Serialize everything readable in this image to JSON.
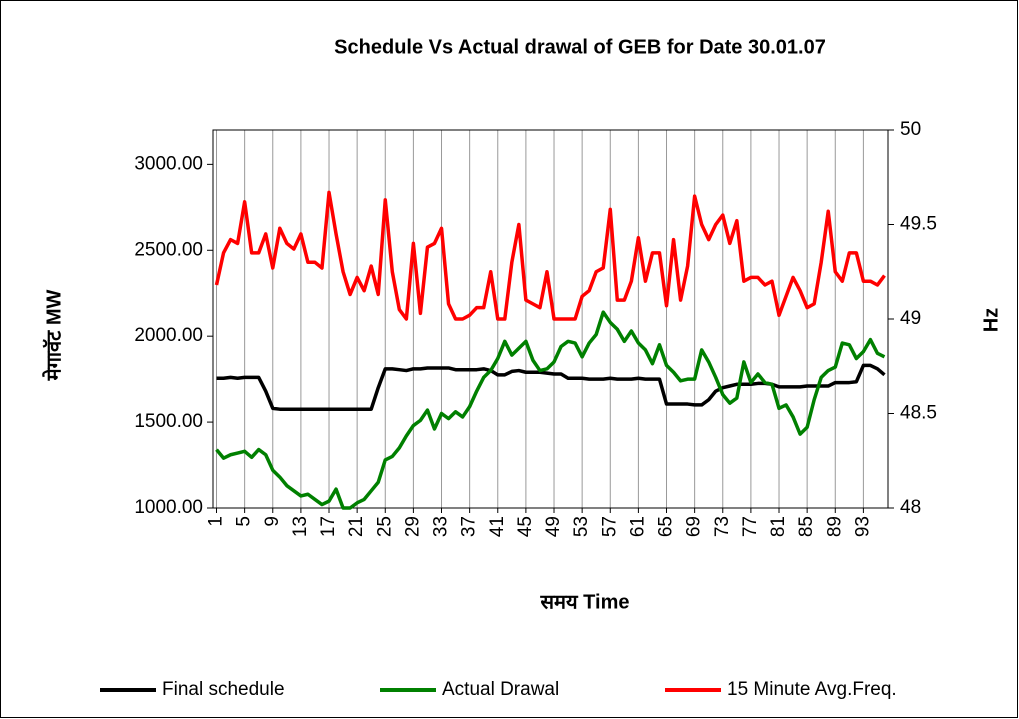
{
  "chart_data": {
    "type": "line",
    "title": "Schedule Vs Actual drawal of GEB for Date 30.01.07",
    "x_label": "समय Time",
    "y_label": "मेगावॅट   MW",
    "y2_label": "Hz",
    "categories": [
      1,
      null,
      null,
      null,
      5,
      null,
      null,
      null,
      9,
      null,
      null,
      null,
      13,
      null,
      null,
      null,
      17,
      null,
      null,
      null,
      21,
      null,
      null,
      null,
      25,
      null,
      null,
      null,
      29,
      null,
      null,
      null,
      33,
      null,
      null,
      null,
      37,
      null,
      null,
      null,
      41,
      null,
      null,
      null,
      45,
      null,
      null,
      null,
      49,
      null,
      null,
      null,
      53,
      null,
      null,
      null,
      57,
      null,
      null,
      null,
      61,
      null,
      null,
      null,
      65,
      null,
      null,
      null,
      69,
      null,
      null,
      null,
      73,
      null,
      null,
      null,
      77,
      null,
      null,
      null,
      81,
      null,
      null,
      null,
      85,
      null,
      null,
      null,
      89,
      null,
      null,
      null,
      93,
      null,
      null,
      null
    ],
    "ylim": [
      1000,
      3200
    ],
    "yticks": [
      {
        "value": 1000,
        "label": "1000.00"
      },
      {
        "value": 1500,
        "label": "1500.00"
      },
      {
        "value": 2000,
        "label": "2000.00"
      },
      {
        "value": 2500,
        "label": "2500.00"
      },
      {
        "value": 3000,
        "label": "3000.00"
      }
    ],
    "y2lim": [
      48,
      50
    ],
    "y2ticks": [
      48,
      48.5,
      49,
      49.5,
      50
    ],
    "grid": "x",
    "legend": "bottom",
    "series": [
      {
        "name": "Final schedule",
        "color": "#000000",
        "values": [
          1755,
          1755,
          1760,
          1755,
          1760,
          1760,
          1760,
          1680,
          1580,
          1575,
          1575,
          1575,
          1575,
          1575,
          1575,
          1575,
          1575,
          1575,
          1575,
          1575,
          1575,
          1575,
          1575,
          1700,
          1810,
          1810,
          1805,
          1800,
          1810,
          1810,
          1815,
          1815,
          1815,
          1815,
          1805,
          1805,
          1805,
          1805,
          1810,
          1800,
          1775,
          1775,
          1795,
          1800,
          1790,
          1790,
          1790,
          1785,
          1780,
          1780,
          1755,
          1755,
          1755,
          1750,
          1750,
          1750,
          1755,
          1750,
          1750,
          1750,
          1755,
          1750,
          1750,
          1750,
          1605,
          1605,
          1605,
          1605,
          1600,
          1600,
          1630,
          1680,
          1700,
          1710,
          1720,
          1720,
          1720,
          1725,
          1725,
          1720,
          1705,
          1705,
          1705,
          1705,
          1710,
          1710,
          1710,
          1710,
          1730,
          1730,
          1730,
          1735,
          1830,
          1830,
          1810,
          1775
        ]
      },
      {
        "name": "Actual Drawal",
        "color": "#008000",
        "values": [
          1340,
          1290,
          1310,
          1320,
          1330,
          1295,
          1340,
          1310,
          1220,
          1180,
          1130,
          1100,
          1070,
          1080,
          1050,
          1020,
          1040,
          1110,
          1000,
          1000,
          1030,
          1050,
          1100,
          1150,
          1280,
          1300,
          1350,
          1420,
          1480,
          1510,
          1570,
          1460,
          1550,
          1520,
          1560,
          1530,
          1590,
          1680,
          1760,
          1800,
          1870,
          1970,
          1890,
          1930,
          1970,
          1860,
          1800,
          1810,
          1850,
          1940,
          1970,
          1960,
          1880,
          1960,
          2010,
          2140,
          2080,
          2040,
          1970,
          2030,
          1960,
          1920,
          1840,
          1950,
          1830,
          1790,
          1740,
          1750,
          1750,
          1920,
          1850,
          1760,
          1660,
          1610,
          1640,
          1850,
          1730,
          1780,
          1730,
          1720,
          1580,
          1600,
          1530,
          1430,
          1470,
          1630,
          1760,
          1800,
          1820,
          1960,
          1950,
          1870,
          1910,
          1980,
          1900,
          1880
        ]
      },
      {
        "name": "15 Minute Avg.Freq.",
        "color": "#ff0000",
        "axis": "y2",
        "values": [
          49.18,
          49.35,
          49.42,
          49.4,
          49.62,
          49.35,
          49.35,
          49.45,
          49.27,
          49.48,
          49.4,
          49.37,
          49.45,
          49.3,
          49.3,
          49.27,
          49.67,
          49.45,
          49.25,
          49.13,
          49.22,
          49.15,
          49.28,
          49.13,
          49.63,
          49.25,
          49.05,
          49.0,
          49.4,
          49.03,
          49.38,
          49.4,
          49.48,
          49.08,
          49.0,
          49.0,
          49.02,
          49.06,
          49.06,
          49.25,
          49.0,
          49.0,
          49.3,
          49.5,
          49.1,
          49.08,
          49.06,
          49.25,
          49.0,
          49.0,
          49.0,
          49.0,
          49.12,
          49.15,
          49.25,
          49.27,
          49.58,
          49.1,
          49.1,
          49.2,
          49.43,
          49.2,
          49.35,
          49.35,
          49.07,
          49.42,
          49.1,
          49.28,
          49.65,
          49.5,
          49.42,
          49.5,
          49.55,
          49.4,
          49.52,
          49.2,
          49.22,
          49.22,
          49.18,
          49.2,
          49.02,
          49.12,
          49.22,
          49.15,
          49.06,
          49.08,
          49.3,
          49.57,
          49.25,
          49.2,
          49.35,
          49.35,
          49.2,
          49.2,
          49.18,
          49.23
        ]
      }
    ]
  }
}
